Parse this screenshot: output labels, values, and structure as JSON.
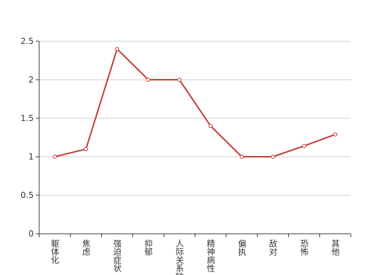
{
  "chart_data": {
    "type": "line",
    "categories": [
      "躯体化",
      "焦虑",
      "强迫症状",
      "抑郁",
      "人际关系敏感",
      "精神病性",
      "偏执",
      "敌对",
      "恐怖",
      "其他"
    ],
    "series": [
      {
        "color": "#c23531",
        "values": [
          1,
          1.1,
          2.4,
          2,
          2,
          1.4,
          1,
          1,
          1.14,
          1.29
        ]
      }
    ],
    "ylim": [
      0,
      2.5
    ],
    "yticks": [
      0,
      0.5,
      1,
      1.5,
      2,
      2.5
    ],
    "grid": true
  }
}
